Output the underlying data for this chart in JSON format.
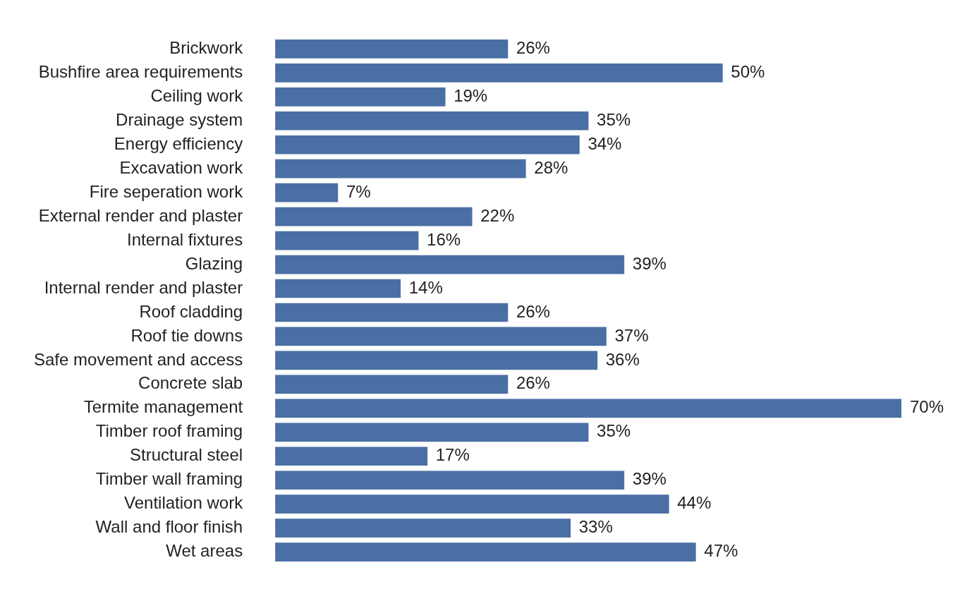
{
  "chart_data": {
    "type": "bar",
    "orientation": "horizontal",
    "color": "#4a6fa5",
    "categories": [
      "Brickwork",
      "Bushfire area requirements",
      "Ceiling work",
      "Drainage system",
      "Energy efficiency",
      "Excavation work",
      "Fire seperation work",
      "External render and plaster",
      "Internal fixtures",
      "Glazing",
      "Internal render and plaster",
      "Roof cladding",
      "Roof tie downs",
      "Safe movement and access",
      "Concrete slab",
      "Termite management",
      "Timber roof framing",
      "Structural steel",
      "Timber wall framing",
      "Ventilation work",
      "Wall and floor finish",
      "Wet areas"
    ],
    "values": [
      26,
      50,
      19,
      35,
      34,
      28,
      7,
      22,
      16,
      39,
      14,
      26,
      37,
      36,
      26,
      70,
      35,
      17,
      39,
      44,
      33,
      47
    ],
    "value_labels": [
      "26%",
      "50%",
      "19%",
      "35%",
      "34%",
      "28%",
      "7%",
      "22%",
      "16%",
      "39%",
      "14%",
      "26%",
      "37%",
      "36%",
      "26%",
      "70%",
      "35%",
      "17%",
      "39%",
      "44%",
      "33%",
      "47%"
    ]
  }
}
